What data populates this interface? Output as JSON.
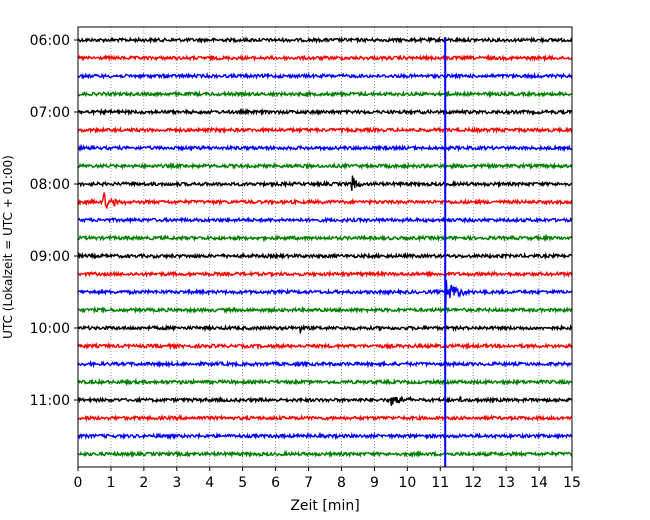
{
  "chart_data": {
    "type": "line",
    "title": "",
    "xlabel": "Zeit  [min]",
    "ylabel": "UTC (Lokalzeit = UTC + 01:00)",
    "xlim": [
      0,
      15
    ],
    "x_ticks": [
      0,
      1,
      2,
      3,
      4,
      5,
      6,
      7,
      8,
      9,
      10,
      11,
      12,
      13,
      14,
      15
    ],
    "y_tick_labels": [
      "06:00",
      "07:00",
      "08:00",
      "09:00",
      "10:00",
      "11:00"
    ],
    "grid": "vertical dotted",
    "trace_interval_min": 15,
    "trace_colors": [
      "#000000",
      "#ff0000",
      "#0000ff",
      "#008000"
    ],
    "traces": [
      {
        "start": "06:00",
        "color": "#000000"
      },
      {
        "start": "06:15",
        "color": "#ff0000"
      },
      {
        "start": "06:30",
        "color": "#0000ff"
      },
      {
        "start": "06:45",
        "color": "#008000"
      },
      {
        "start": "07:00",
        "color": "#000000"
      },
      {
        "start": "07:15",
        "color": "#ff0000"
      },
      {
        "start": "07:30",
        "color": "#0000ff"
      },
      {
        "start": "07:45",
        "color": "#008000"
      },
      {
        "start": "08:00",
        "color": "#000000",
        "events": [
          {
            "x": 8.3,
            "amp": 1.7,
            "dur": 0.5
          }
        ]
      },
      {
        "start": "08:15",
        "color": "#ff0000",
        "events": [
          {
            "x": 0.75,
            "amp": 1.4,
            "dur": 1.2
          }
        ]
      },
      {
        "start": "08:30",
        "color": "#0000ff"
      },
      {
        "start": "08:45",
        "color": "#008000"
      },
      {
        "start": "09:00",
        "color": "#000000"
      },
      {
        "start": "09:15",
        "color": "#ff0000"
      },
      {
        "start": "09:30",
        "color": "#0000ff",
        "events": [
          {
            "x": 11.15,
            "amp": 2.5,
            "dur": 1.1
          }
        ]
      },
      {
        "start": "09:45",
        "color": "#008000"
      },
      {
        "start": "10:00",
        "color": "#000000",
        "events": [
          {
            "x": 6.75,
            "amp": 1.0,
            "dur": 0.15
          }
        ]
      },
      {
        "start": "10:15",
        "color": "#ff0000"
      },
      {
        "start": "10:30",
        "color": "#0000ff"
      },
      {
        "start": "10:45",
        "color": "#008000"
      },
      {
        "start": "11:00",
        "color": "#000000",
        "events": [
          {
            "x": 9.5,
            "amp": 1.1,
            "dur": 1.2
          },
          {
            "x": 11.6,
            "amp": 0.4,
            "dur": 0.2
          }
        ]
      },
      {
        "start": "11:15",
        "color": "#ff0000"
      },
      {
        "start": "11:30",
        "color": "#0000ff"
      },
      {
        "start": "11:45",
        "color": "#008000"
      }
    ],
    "vertical_marker": {
      "x": 11.15,
      "color": "#0000ff"
    }
  }
}
